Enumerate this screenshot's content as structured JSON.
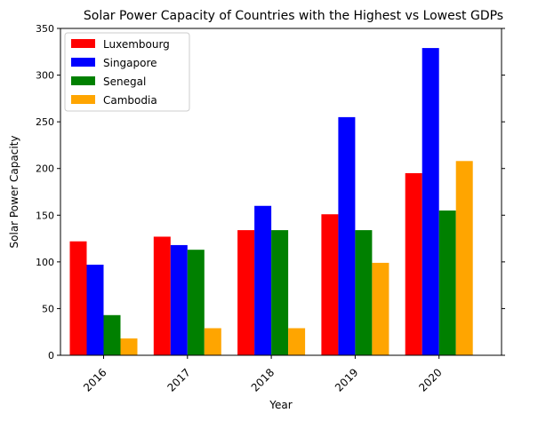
{
  "chart_data": {
    "type": "bar",
    "title": "Solar Power Capacity of Countries with the Highest vs Lowest GDPs",
    "xlabel": "Year",
    "ylabel": "Solar Power Capacity",
    "categories": [
      "2016",
      "2017",
      "2018",
      "2019",
      "2020"
    ],
    "series": [
      {
        "name": "Luxembourg",
        "color": "#ff0000",
        "values": [
          122,
          127,
          134,
          151,
          195
        ]
      },
      {
        "name": "Singapore",
        "color": "#0000ff",
        "values": [
          97,
          118,
          160,
          255,
          329
        ]
      },
      {
        "name": "Senegal",
        "color": "#008000",
        "values": [
          43,
          113,
          134,
          134,
          155
        ]
      },
      {
        "name": "Cambodia",
        "color": "#ffa500",
        "values": [
          18,
          29,
          29,
          99,
          208
        ]
      }
    ],
    "ylim": [
      0,
      350
    ],
    "yticks": [
      0,
      50,
      100,
      150,
      200,
      250,
      300,
      350
    ],
    "xtick_rotation": 45,
    "grid": false,
    "legend_position": "top-left"
  }
}
